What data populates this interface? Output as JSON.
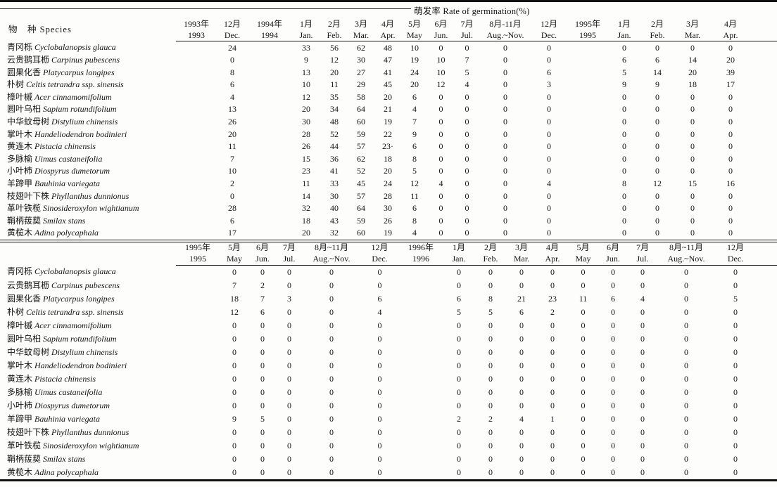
{
  "spanner_title": "萌发率 Rate of germination(%)",
  "species": [
    {
      "cn": "青冈栎",
      "latin": "Cyclobalanopsis glauca"
    },
    {
      "cn": "云贵鹅耳枥",
      "latin": "Carpinus pubescens"
    },
    {
      "cn": "圆果化香",
      "latin": "Platycarpus longipes"
    },
    {
      "cn": "朴树",
      "latin": "Celtis tetrandra ssp. sinensis"
    },
    {
      "cn": "樟叶槭",
      "latin": "Acer cinnamomifolium"
    },
    {
      "cn": "圆叶乌桕",
      "latin": "Sapium rotundifolium"
    },
    {
      "cn": "中华蚊母树",
      "latin": "Distylium chinensis"
    },
    {
      "cn": "掌叶木",
      "latin": "Handeliodendron bodinieri"
    },
    {
      "cn": "黄连木",
      "latin": "Pistacia chinensis"
    },
    {
      "cn": "多脉榆",
      "latin": "Uimus castaneifolia"
    },
    {
      "cn": "小叶柿",
      "latin": "Diospyrus dumetorum"
    },
    {
      "cn": "羊蹄甲",
      "latin": "Bauhinia variegata"
    },
    {
      "cn": "枝翅叶下株",
      "latin": "Phyllanthus dunnionus"
    },
    {
      "cn": "革叶铁榄",
      "latin": "Sinosideroxylon wightianum"
    },
    {
      "cn": "鞘柄菝葜",
      "latin": "Smilax stans"
    },
    {
      "cn": "黄榄木",
      "latin": "Adina polycaphala"
    }
  ],
  "table1": {
    "species_header": "物　种  Species",
    "columns_cn": [
      "1993年",
      "12月",
      "1994年",
      "1月",
      "2月",
      "3月",
      "4月",
      "5月",
      "6月",
      "7月",
      "8月-11月",
      "12月",
      "1995年",
      "1月",
      "2月",
      "3月",
      "4月"
    ],
    "columns_en": [
      "1993",
      "Dec.",
      "1994",
      "Jan.",
      "Feb.",
      "Mar.",
      "Apr.",
      "May",
      "Jun.",
      "Jul.",
      "Aug.~Nov.",
      "Dec.",
      "1995",
      "Jan.",
      "Feb.",
      "Mar.",
      "Apr."
    ],
    "values": [
      [
        24,
        33,
        56,
        62,
        48,
        10,
        0,
        0,
        0,
        0,
        0,
        0,
        0,
        0
      ],
      [
        0,
        9,
        12,
        30,
        47,
        19,
        10,
        7,
        0,
        0,
        6,
        6,
        14,
        20
      ],
      [
        8,
        13,
        20,
        27,
        41,
        24,
        10,
        5,
        0,
        6,
        5,
        14,
        20,
        39
      ],
      [
        6,
        10,
        11,
        29,
        45,
        20,
        12,
        4,
        0,
        3,
        9,
        9,
        18,
        17
      ],
      [
        4,
        12,
        35,
        58,
        20,
        6,
        0,
        0,
        0,
        0,
        0,
        0,
        0,
        0
      ],
      [
        13,
        20,
        34,
        64,
        21,
        4,
        0,
        0,
        0,
        0,
        0,
        0,
        0,
        0
      ],
      [
        26,
        30,
        48,
        60,
        19,
        7,
        0,
        0,
        0,
        0,
        0,
        0,
        0,
        0
      ],
      [
        20,
        28,
        52,
        59,
        22,
        9,
        0,
        0,
        0,
        0,
        0,
        0,
        0,
        0
      ],
      [
        11,
        26,
        44,
        57,
        "23·",
        6,
        0,
        0,
        0,
        0,
        0,
        0,
        0,
        0
      ],
      [
        7,
        15,
        36,
        62,
        18,
        8,
        0,
        0,
        0,
        0,
        0,
        0,
        0,
        0
      ],
      [
        10,
        23,
        41,
        52,
        20,
        5,
        0,
        0,
        0,
        0,
        0,
        0,
        0,
        0
      ],
      [
        2,
        11,
        33,
        45,
        24,
        12,
        4,
        0,
        0,
        4,
        8,
        12,
        15,
        16
      ],
      [
        0,
        14,
        30,
        57,
        28,
        11,
        0,
        0,
        0,
        0,
        0,
        0,
        0,
        0
      ],
      [
        28,
        32,
        40,
        64,
        30,
        6,
        0,
        0,
        0,
        0,
        0,
        0,
        0,
        0
      ],
      [
        6,
        18,
        43,
        59,
        26,
        8,
        0,
        0,
        0,
        0,
        0,
        0,
        0,
        0
      ],
      [
        17,
        20,
        32,
        60,
        19,
        4,
        0,
        0,
        0,
        0,
        0,
        0,
        0,
        0
      ]
    ]
  },
  "table2": {
    "species_header": "",
    "columns_cn": [
      "1995年",
      "5月",
      "6月",
      "7月",
      "8月~11月",
      "12月",
      "1996年",
      "1月",
      "2月",
      "3月",
      "4月",
      "5月",
      "6月",
      "7月",
      "8月~11月",
      "12月"
    ],
    "columns_en": [
      "1995",
      "May",
      "Jun.",
      "Jul.",
      "Aug.~Nov.",
      "Dec.",
      "1996",
      "Jan.",
      "Feb.",
      "Mar.",
      "Apr.",
      "May",
      "Jun.",
      "Jul.",
      "Aug.~Nov.",
      "Dec."
    ],
    "values": [
      [
        0,
        0,
        0,
        0,
        0,
        0,
        0,
        0,
        0,
        0,
        0,
        0,
        0,
        0
      ],
      [
        7,
        2,
        0,
        0,
        0,
        0,
        0,
        0,
        0,
        0,
        0,
        0,
        0,
        0
      ],
      [
        18,
        7,
        3,
        0,
        6,
        6,
        8,
        21,
        23,
        11,
        6,
        4,
        0,
        5
      ],
      [
        12,
        6,
        0,
        0,
        4,
        5,
        5,
        6,
        2,
        0,
        0,
        0,
        0,
        0
      ],
      [
        0,
        0,
        0,
        0,
        0,
        0,
        0,
        0,
        0,
        0,
        0,
        0,
        0,
        0
      ],
      [
        0,
        0,
        0,
        0,
        0,
        0,
        0,
        0,
        0,
        0,
        0,
        0,
        0,
        0
      ],
      [
        0,
        0,
        0,
        0,
        0,
        0,
        0,
        0,
        0,
        0,
        0,
        0,
        0,
        0
      ],
      [
        0,
        0,
        0,
        0,
        0,
        0,
        0,
        0,
        0,
        0,
        0,
        0,
        0,
        0
      ],
      [
        0,
        0,
        0,
        0,
        0,
        0,
        0,
        0,
        0,
        0,
        0,
        0,
        0,
        0
      ],
      [
        0,
        0,
        0,
        0,
        0,
        0,
        0,
        0,
        0,
        0,
        0,
        0,
        0,
        0
      ],
      [
        0,
        0,
        0,
        0,
        0,
        0,
        0,
        0,
        0,
        0,
        0,
        0,
        0,
        0
      ],
      [
        9,
        5,
        0,
        0,
        0,
        2,
        2,
        4,
        1,
        0,
        0,
        0,
        0,
        0
      ],
      [
        0,
        0,
        0,
        0,
        0,
        0,
        0,
        0,
        0,
        0,
        0,
        0,
        0,
        0
      ],
      [
        0,
        0,
        0,
        0,
        0,
        0,
        0,
        0,
        0,
        0,
        0,
        0,
        0,
        0
      ],
      [
        0,
        0,
        0,
        0,
        0,
        0,
        0,
        0,
        0,
        0,
        0,
        0,
        0,
        0
      ],
      [
        0,
        0,
        0,
        0,
        0,
        0,
        0,
        0,
        0,
        0,
        0,
        0,
        0,
        0
      ]
    ]
  }
}
